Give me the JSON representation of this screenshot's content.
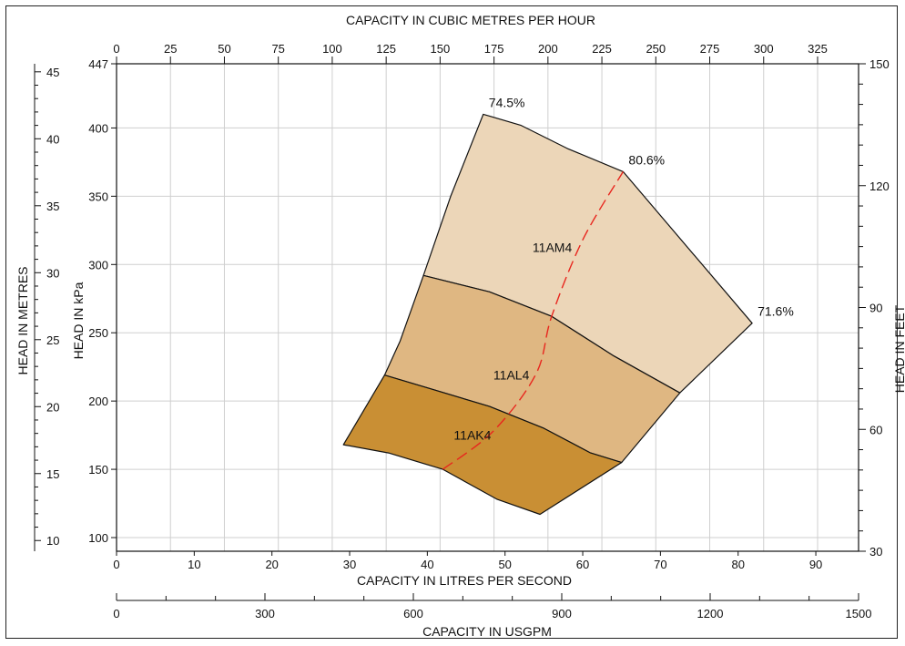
{
  "chart_data": {
    "type": "area",
    "title": "",
    "colors": {
      "region_11AK4": "#c98f34",
      "region_11AL4": "#dfb782",
      "region_11AM4": "#ecd6b8",
      "efficiency_line": "#e8261e",
      "grid": "#cfcfcf",
      "axis": "#111111"
    },
    "grid": true,
    "axes": {
      "x_bottom": {
        "label": "CAPACITY IN LITRES PER SECOND",
        "unit": "L/s",
        "range": [
          0,
          95.5
        ],
        "ticks": [
          0,
          10,
          20,
          30,
          40,
          50,
          60,
          70,
          80,
          90
        ]
      },
      "x_top": {
        "label": "CAPACITY IN CUBIC METRES PER HOUR",
        "unit": "m3/h",
        "range": [
          0,
          344
        ],
        "ticks": [
          0,
          25,
          50,
          75,
          100,
          125,
          150,
          175,
          200,
          225,
          250,
          275,
          300,
          325
        ]
      },
      "x_usgpm": {
        "label": "CAPACITY IN USGPM",
        "unit": "USGPM",
        "range": [
          0,
          1500
        ],
        "labeled_ticks": [
          0,
          300,
          600,
          900,
          1200,
          1500
        ],
        "minor_step": 100
      },
      "y_left_kpa": {
        "label": "HEAD IN kPa",
        "unit": "kPa",
        "range": [
          90,
          447
        ],
        "ticks": [
          "100",
          "150",
          "200",
          "250",
          "300",
          "350",
          "400",
          "447"
        ]
      },
      "y_left_metres": {
        "label": "HEAD IN METRES",
        "unit": "m",
        "range": [
          9.2,
          45.6
        ],
        "ticks": [
          10,
          15,
          20,
          25,
          30,
          35,
          40,
          45
        ]
      },
      "y_right_feet": {
        "label": "HEAD IN FEET",
        "unit": "ft",
        "range": [
          30,
          150
        ],
        "ticks": [
          30,
          60,
          90,
          120,
          150
        ]
      }
    },
    "series": [
      {
        "name": "11AK4",
        "points": [
          [
            29.2,
            168
          ],
          [
            34.5,
            219
          ],
          [
            41,
            208
          ],
          [
            48,
            196
          ],
          [
            55,
            180
          ],
          [
            61,
            162
          ],
          [
            65,
            155
          ],
          [
            54.5,
            117
          ],
          [
            49,
            128
          ],
          [
            42,
            150
          ],
          [
            35,
            162
          ]
        ]
      },
      {
        "name": "11AL4",
        "points": [
          [
            34.5,
            219
          ],
          [
            36.5,
            244
          ],
          [
            39.5,
            292
          ],
          [
            48,
            280
          ],
          [
            56,
            262
          ],
          [
            64,
            233
          ],
          [
            72.5,
            206
          ],
          [
            65,
            155
          ],
          [
            61,
            162
          ],
          [
            55,
            180
          ],
          [
            48,
            196
          ],
          [
            41,
            208
          ]
        ]
      },
      {
        "name": "11AM4",
        "points": [
          [
            39.5,
            292
          ],
          [
            43,
            350
          ],
          [
            47.2,
            410
          ],
          [
            52,
            402
          ],
          [
            58,
            385
          ],
          [
            65.2,
            368
          ],
          [
            81.8,
            257
          ],
          [
            72.5,
            206
          ],
          [
            64,
            233
          ],
          [
            56,
            262
          ],
          [
            48,
            280
          ]
        ]
      }
    ],
    "efficiency_line": {
      "dashed": true,
      "points": [
        [
          42,
          150
        ],
        [
          48.5,
          178
        ],
        [
          54,
          220
        ],
        [
          56,
          262
        ],
        [
          60,
          318
        ],
        [
          65.2,
          368
        ]
      ]
    },
    "annotations": [
      {
        "text": "74.5%",
        "x": 47.2,
        "y": 410
      },
      {
        "text": "80.6%",
        "x": 65.2,
        "y": 368
      },
      {
        "text": "71.6%",
        "x": 81.8,
        "y": 257
      }
    ]
  }
}
